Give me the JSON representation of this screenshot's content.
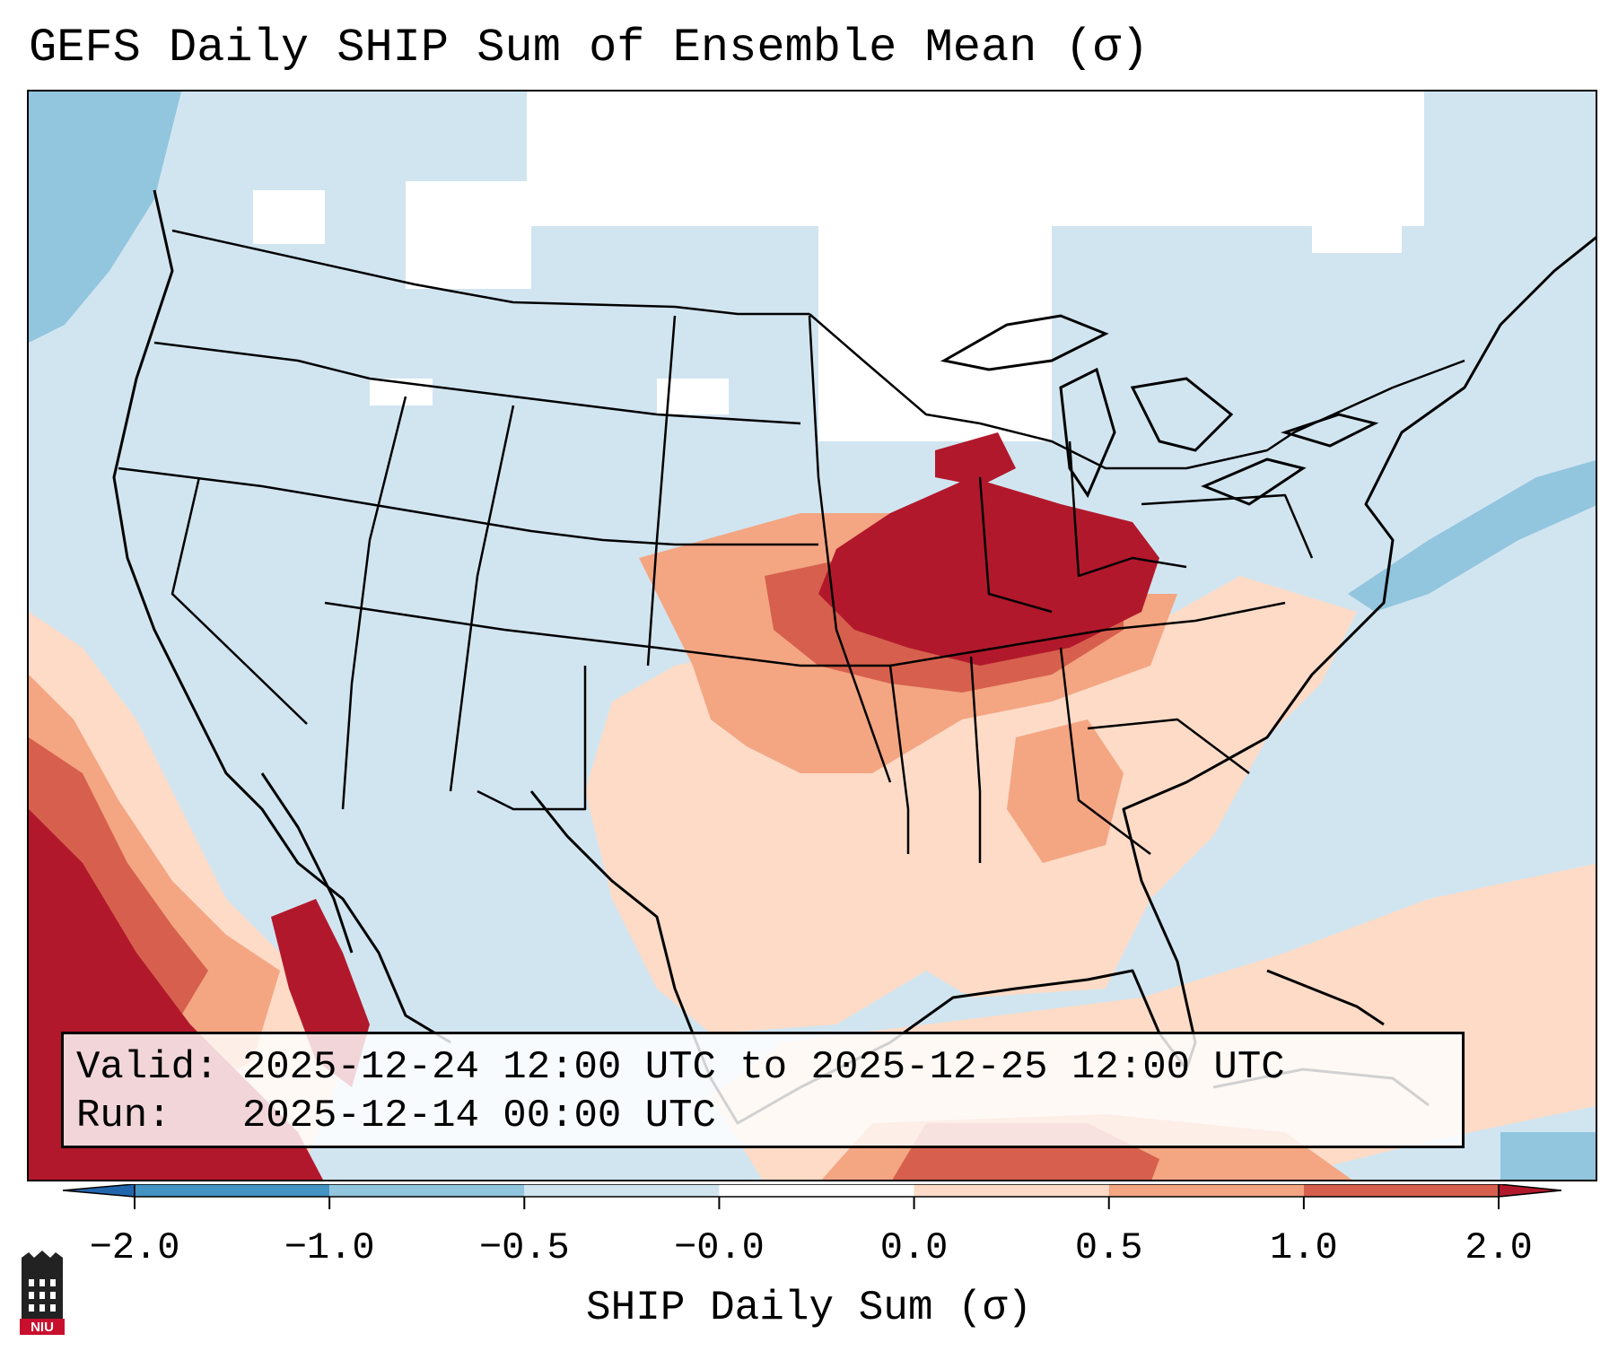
{
  "title": "GEFS Daily SHIP Sum of Ensemble Mean (σ)",
  "info": {
    "valid_label": "Valid:",
    "valid_value": "2025-12-24 12:00 UTC to 2025-12-25 12:00 UTC",
    "run_label": "Run:",
    "run_value": "2025-12-14 00:00 UTC"
  },
  "colorbar": {
    "label": "SHIP Daily Sum (σ)",
    "ticks": [
      "−2.0",
      "−1.0",
      "−0.5",
      "−0.0",
      "0.0",
      "0.5",
      "1.0",
      "2.0"
    ],
    "colors": [
      "#2166ac",
      "#4393c3",
      "#92c5de",
      "#d1e5f0",
      "#ffffff",
      "#fddbc7",
      "#f4a582",
      "#d6604d",
      "#b2182b"
    ]
  },
  "logo": {
    "text": "NIU"
  }
}
